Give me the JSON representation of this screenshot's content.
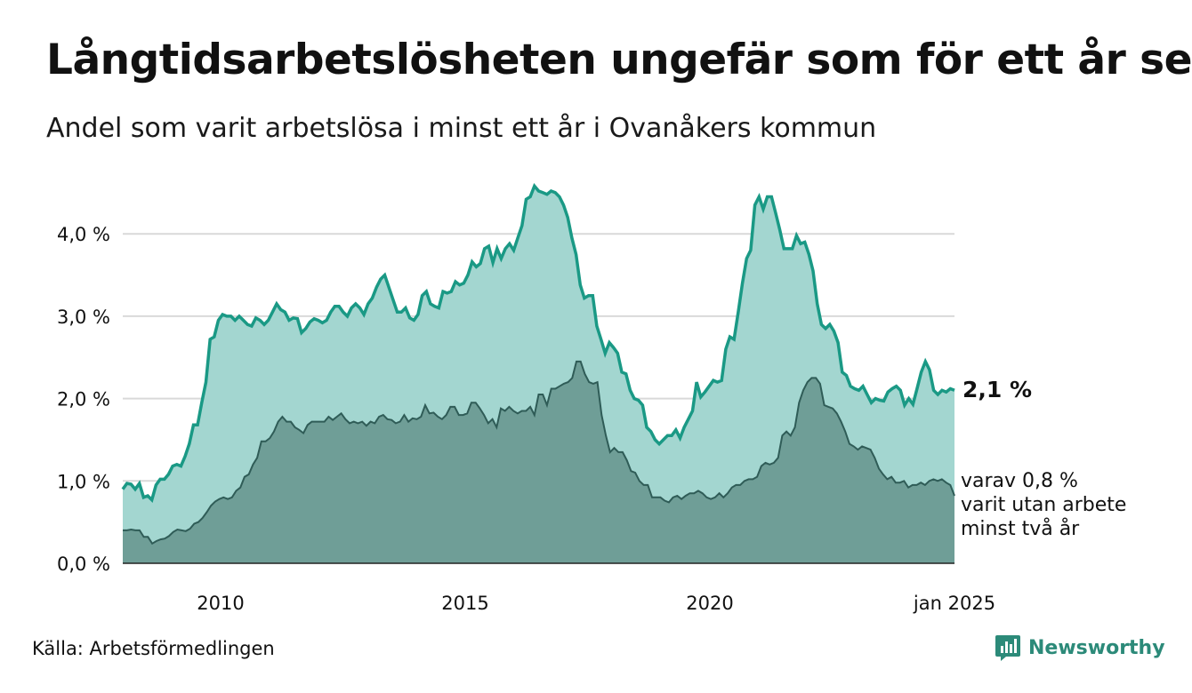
{
  "title": "Långtidsarbetslösheten ungefär som för ett år sen",
  "subtitle": "Andel som varit arbetslösa i minst ett år i Ovanåkers kommun",
  "source": "Källa: Arbetsförmedlingen",
  "brand": "Newsworthy",
  "colors": {
    "series1_line": "#1a9985",
    "series1_fill": "#a3d6d0",
    "series2_line": "#2f5c57",
    "series2_fill": "#6f9e97",
    "grid": "#d9d9d9"
  },
  "chart_data": {
    "type": "area",
    "ylim": [
      0,
      4.6
    ],
    "yticks": [
      "0,0 %",
      "1,0 %",
      "2,0 %",
      "3,0 %",
      "4,0 %"
    ],
    "xticks": [
      "2010",
      "2015",
      "2020",
      "jan 2025"
    ],
    "x_start": "2008-01",
    "x_end": "2025-01",
    "annotations": {
      "end_value": "2,1 %",
      "inner_label": [
        "varav 0,8 %",
        "varit utan arbete",
        "minst två år"
      ]
    },
    "series": [
      {
        "values": [
          0.9,
          0.97,
          0.96,
          0.9,
          0.97,
          0.8,
          0.82,
          0.77,
          0.95,
          1.02,
          1.02,
          1.08,
          1.18,
          1.2,
          1.18,
          1.3,
          1.45,
          1.68,
          1.68,
          1.95,
          2.2,
          2.72,
          2.75,
          2.95,
          3.02,
          3.0,
          3.0,
          2.95,
          3.0,
          2.95,
          2.9,
          2.88,
          2.98,
          2.95,
          2.9,
          2.95,
          3.05,
          3.15,
          3.08,
          3.05,
          2.95,
          2.98,
          2.97,
          2.8,
          2.85,
          2.93,
          2.97,
          2.95,
          2.92,
          2.95,
          3.05,
          3.12,
          3.12,
          3.05,
          3.0,
          3.1,
          3.15,
          3.1,
          3.02,
          3.15,
          3.22,
          3.35,
          3.45,
          3.5,
          3.35,
          3.2,
          3.05,
          3.05,
          3.1,
          2.98,
          2.95,
          3.02,
          3.25,
          3.3,
          3.15,
          3.12,
          3.1,
          3.3,
          3.28,
          3.3,
          3.42,
          3.38,
          3.4,
          3.5,
          3.66,
          3.6,
          3.64,
          3.82,
          3.85,
          3.65,
          3.82,
          3.7,
          3.82,
          3.88,
          3.8,
          3.95,
          4.1,
          4.42,
          4.45,
          4.58,
          4.52,
          4.5,
          4.48,
          4.52,
          4.5,
          4.45,
          4.35,
          4.2,
          3.95,
          3.75,
          3.38,
          3.22,
          3.25,
          3.25,
          2.88,
          2.72,
          2.55,
          2.68,
          2.62,
          2.55,
          2.32,
          2.3,
          2.1,
          2.0,
          1.98,
          1.92,
          1.65,
          1.6,
          1.5,
          1.45,
          1.5,
          1.55,
          1.55,
          1.62,
          1.52,
          1.65,
          1.75,
          1.85,
          2.2,
          2.02,
          2.08,
          2.15,
          2.22,
          2.2,
          2.22,
          2.6,
          2.75,
          2.72,
          3.05,
          3.4,
          3.7,
          3.8,
          4.35,
          4.45,
          4.3,
          4.45,
          4.45,
          4.25,
          4.05,
          3.82,
          3.82,
          3.82,
          3.98,
          3.88,
          3.9,
          3.75,
          3.55,
          3.15,
          2.9,
          2.85,
          2.9,
          2.82,
          2.68,
          2.32,
          2.28,
          2.15,
          2.12,
          2.1,
          2.15,
          2.05,
          1.95,
          2.0,
          1.98,
          1.97,
          2.08,
          2.12,
          2.15,
          2.1,
          1.92,
          2.0,
          1.93,
          2.12,
          2.32,
          2.45,
          2.35,
          2.1,
          2.05,
          2.1,
          2.08,
          2.12,
          2.1
        ]
      },
      {
        "values": [
          0.4,
          0.4,
          0.41,
          0.4,
          0.4,
          0.32,
          0.32,
          0.24,
          0.27,
          0.29,
          0.3,
          0.33,
          0.38,
          0.41,
          0.4,
          0.39,
          0.42,
          0.48,
          0.5,
          0.55,
          0.62,
          0.7,
          0.75,
          0.78,
          0.8,
          0.78,
          0.8,
          0.88,
          0.92,
          1.05,
          1.08,
          1.2,
          1.28,
          1.48,
          1.48,
          1.52,
          1.6,
          1.72,
          1.78,
          1.72,
          1.72,
          1.65,
          1.62,
          1.58,
          1.68,
          1.72,
          1.72,
          1.72,
          1.72,
          1.78,
          1.74,
          1.78,
          1.82,
          1.75,
          1.7,
          1.72,
          1.7,
          1.72,
          1.67,
          1.72,
          1.7,
          1.78,
          1.8,
          1.75,
          1.74,
          1.7,
          1.72,
          1.8,
          1.72,
          1.76,
          1.75,
          1.78,
          1.92,
          1.82,
          1.83,
          1.78,
          1.75,
          1.8,
          1.9,
          1.9,
          1.8,
          1.8,
          1.82,
          1.95,
          1.95,
          1.88,
          1.8,
          1.7,
          1.75,
          1.65,
          1.88,
          1.85,
          1.9,
          1.85,
          1.82,
          1.85,
          1.85,
          1.9,
          1.8,
          2.05,
          2.05,
          1.92,
          2.12,
          2.12,
          2.15,
          2.18,
          2.2,
          2.25,
          2.45,
          2.45,
          2.3,
          2.2,
          2.18,
          2.2,
          1.8,
          1.55,
          1.35,
          1.4,
          1.35,
          1.35,
          1.25,
          1.12,
          1.1,
          1.0,
          0.95,
          0.95,
          0.8,
          0.8,
          0.8,
          0.76,
          0.74,
          0.8,
          0.82,
          0.78,
          0.82,
          0.85,
          0.85,
          0.88,
          0.85,
          0.8,
          0.78,
          0.8,
          0.85,
          0.8,
          0.85,
          0.92,
          0.95,
          0.95,
          1.0,
          1.02,
          1.02,
          1.05,
          1.18,
          1.22,
          1.2,
          1.22,
          1.28,
          1.55,
          1.6,
          1.55,
          1.65,
          1.95,
          2.1,
          2.2,
          2.25,
          2.25,
          2.18,
          1.92,
          1.9,
          1.88,
          1.82,
          1.72,
          1.6,
          1.45,
          1.42,
          1.38,
          1.42,
          1.4,
          1.38,
          1.28,
          1.15,
          1.08,
          1.02,
          1.05,
          0.98,
          0.98,
          1.0,
          0.92,
          0.95,
          0.95,
          0.98,
          0.95,
          1.0,
          1.02,
          1.0,
          1.02,
          0.98,
          0.95,
          0.82
        ]
      }
    ]
  }
}
